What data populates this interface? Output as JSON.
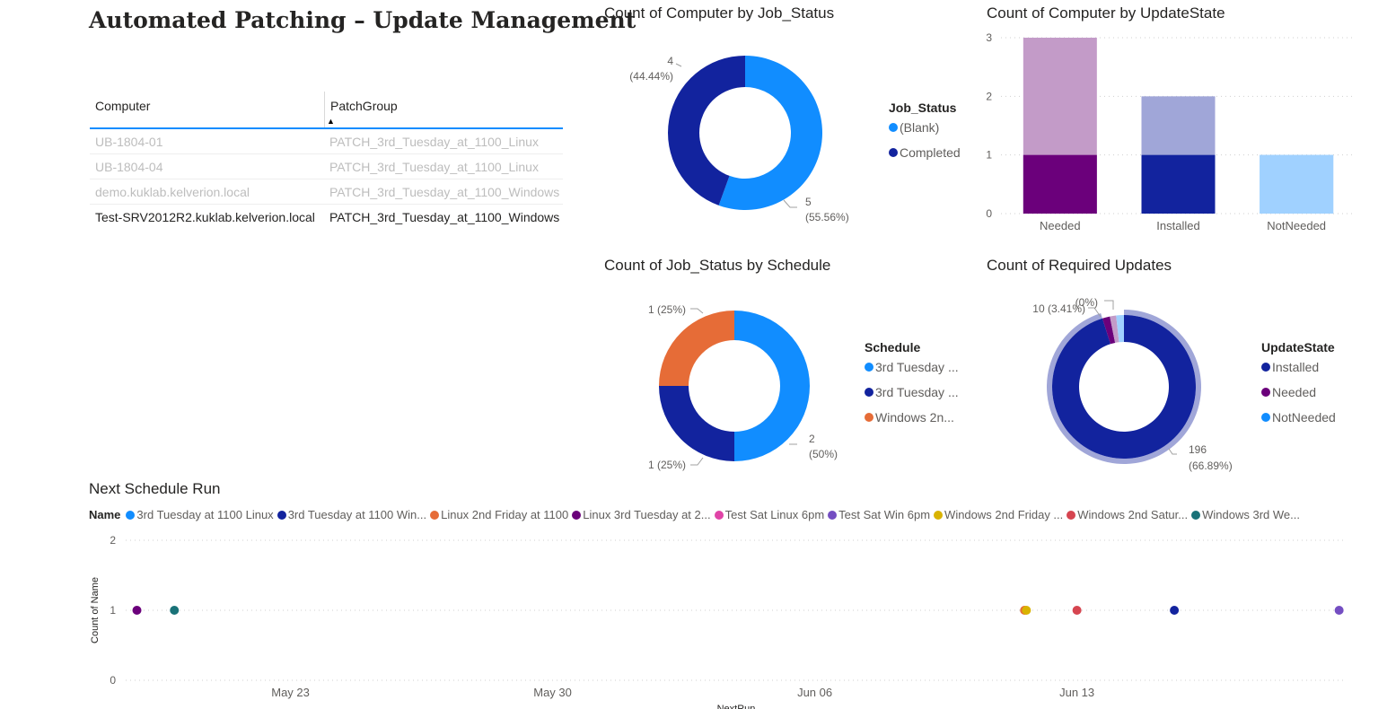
{
  "page_title": "Automated Patching – Update Management",
  "table": {
    "columns": [
      "Computer",
      "PatchGroup"
    ],
    "rows": [
      {
        "computer": "UB-1804-01",
        "patchgroup": "PATCH_3rd_Tuesday_at_1100_Linux",
        "state": "dim"
      },
      {
        "computer": "UB-1804-04",
        "patchgroup": "PATCH_3rd_Tuesday_at_1100_Linux",
        "state": "dim"
      },
      {
        "computer": "demo.kuklab.kelverion.local",
        "patchgroup": "PATCH_3rd_Tuesday_at_1100_Windows",
        "state": "dim"
      },
      {
        "computer": "Test-SRV2012R2.kuklab.kelverion.local",
        "patchgroup": "PATCH_3rd_Tuesday_at_1100_Windows",
        "state": "sel"
      }
    ]
  },
  "chart_data": [
    {
      "id": "job-status",
      "type": "pie",
      "title": "Count of Computer by Job_Status",
      "legend_title": "Job_Status",
      "slices": [
        {
          "label": "(Blank)",
          "value": 5,
          "percent": "55.56%",
          "color": "#118dff"
        },
        {
          "label": "Completed",
          "value": 4,
          "percent": "44.44%",
          "color": "#12239e"
        }
      ]
    },
    {
      "id": "update-state",
      "type": "bar",
      "title": "Count of Computer by UpdateState",
      "categories": [
        "Needed",
        "Installed",
        "NotNeeded"
      ],
      "series": [
        {
          "name": "selected",
          "values": [
            1,
            1,
            1
          ],
          "colors": [
            "#6b007b",
            "#12239e",
            "#a0d1ff"
          ]
        },
        {
          "name": "total",
          "values": [
            3,
            2,
            1
          ],
          "colors": [
            "#c39bc8",
            "#a0a6d8",
            "#a0d1ff"
          ]
        }
      ],
      "yticks": [
        "0",
        "1",
        "2",
        "3"
      ],
      "ylim": [
        0,
        3
      ]
    },
    {
      "id": "schedule",
      "type": "pie",
      "title": "Count of Job_Status by Schedule",
      "legend_title": "Schedule",
      "slices": [
        {
          "label": "3rd Tuesday ...",
          "value": 2,
          "percent": "50%",
          "color": "#118dff"
        },
        {
          "label": "3rd Tuesday ...",
          "value": 1,
          "percent": "25%",
          "color": "#12239e"
        },
        {
          "label": "Windows 2n...",
          "value": 1,
          "percent": "25%",
          "color": "#e66c37"
        }
      ]
    },
    {
      "id": "required-updates",
      "type": "pie",
      "title": "Count of Required Updates",
      "legend_title": "UpdateState",
      "slices": [
        {
          "label": "Installed",
          "value": 196,
          "percent": "66.89%",
          "color": "#12239e",
          "outer_color": "#a0a6d8"
        },
        {
          "label": "Needed",
          "value": 10,
          "percent": "3.41%",
          "color": "#6b007b",
          "outer_color": "#c39bc8"
        },
        {
          "label": "NotNeeded",
          "value": 0,
          "percent": "0%",
          "color": "#118dff",
          "outer_color": "#a0d1ff"
        }
      ]
    },
    {
      "id": "next-run",
      "type": "scatter",
      "title": "Next Schedule Run",
      "legend_title": "Name",
      "xlabel": "NextRun",
      "ylabel": "Count of Name",
      "yticks": [
        "0",
        "1",
        "2"
      ],
      "ylim": [
        0,
        2
      ],
      "x_ticks": [
        {
          "label": "May 23",
          "day": 23
        },
        {
          "label": "May 30",
          "day": 30
        },
        {
          "label": "Jun 06",
          "day": 37
        },
        {
          "label": "Jun 13",
          "day": 44
        }
      ],
      "x_range_days": [
        18.6,
        51.2
      ],
      "legend": [
        {
          "label": "3rd Tuesday at 1100 Linux",
          "color": "#118dff"
        },
        {
          "label": "3rd Tuesday at 1100 Win...",
          "color": "#12239e"
        },
        {
          "label": "Linux 2nd Friday at 1100",
          "color": "#e66c37"
        },
        {
          "label": "Linux 3rd Tuesday at 2...",
          "color": "#6b007b"
        },
        {
          "label": "Test Sat Linux 6pm",
          "color": "#e044a7"
        },
        {
          "label": "Test Sat Win 6pm",
          "color": "#744ec2"
        },
        {
          "label": "Windows 2nd Friday ...",
          "color": "#d9b300"
        },
        {
          "label": "Windows 2nd Satur...",
          "color": "#d64550"
        },
        {
          "label": "Windows 3rd We...",
          "color": "#197278"
        }
      ],
      "points": [
        {
          "series": "Linux 3rd Tuesday at 2...",
          "day": 18.9,
          "value": 1,
          "color": "#6b007b"
        },
        {
          "series": "Windows 3rd We...",
          "day": 19.9,
          "value": 1,
          "color": "#197278"
        },
        {
          "series": "Linux 2nd Friday at 1100",
          "day": 42.6,
          "value": 1,
          "color": "#e66c37"
        },
        {
          "series": "Windows 2nd Friday ...",
          "day": 42.65,
          "value": 1,
          "color": "#d9b300"
        },
        {
          "series": "Windows 2nd Satur...",
          "day": 44.0,
          "value": 1,
          "color": "#d64550"
        },
        {
          "series": "3rd Tuesday at 1100 Win...",
          "day": 46.6,
          "value": 1,
          "color": "#12239e"
        },
        {
          "series": "Test Sat Win 6pm",
          "day": 51.0,
          "value": 1,
          "color": "#744ec2"
        }
      ]
    }
  ]
}
